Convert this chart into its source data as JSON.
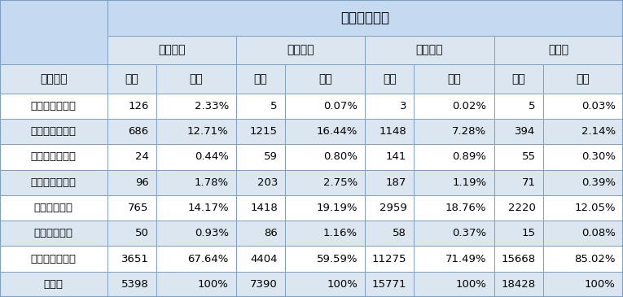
{
  "title": "文章危機程度",
  "col_groups": [
    "高度危機",
    "中度危機",
    "低度危機",
    "無危機"
  ],
  "sub_headers": [
    "句數",
    "比例"
  ],
  "row_header": "語意標註",
  "rows": [
    {
      "label": "自殺或自傷行為",
      "values": [
        "126",
        "2.33%",
        "5",
        "0.07%",
        "3",
        "0.02%",
        "5",
        "0.03%"
      ]
    },
    {
      "label": "憂鬱與自殺意念",
      "values": [
        "686",
        "12.71%",
        "1215",
        "16.44%",
        "1148",
        "7.28%",
        "394",
        "2.14%"
      ]
    },
    {
      "label": "無助感或無望感",
      "values": [
        "24",
        "0.44%",
        "59",
        "0.80%",
        "141",
        "0.89%",
        "55",
        "0.30%"
      ]
    },
    {
      "label": "生理或醫療狀況",
      "values": [
        "96",
        "1.78%",
        "203",
        "2.75%",
        "187",
        "1.19%",
        "71",
        "0.39%"
      ]
    },
    {
      "label": "其他負向文字",
      "values": [
        "765",
        "14.17%",
        "1418",
        "19.19%",
        "2959",
        "18.76%",
        "2220",
        "12.05%"
      ]
    },
    {
      "label": "正向積極文字",
      "values": [
        "50",
        "0.93%",
        "86",
        "1.16%",
        "58",
        "0.37%",
        "15",
        "0.08%"
      ]
    },
    {
      "label": "中性或其他文字",
      "values": [
        "3651",
        "67.64%",
        "4404",
        "59.59%",
        "11275",
        "71.49%",
        "15668",
        "85.02%"
      ]
    }
  ],
  "total_row": {
    "label": "總句數",
    "values": [
      "5398",
      "100%",
      "7390",
      "100%",
      "15771",
      "100%",
      "18428",
      "100%"
    ]
  },
  "header_bg": "#c5d9f1",
  "subheader_bg": "#dce6f1",
  "row_bg_odd": "#ffffff",
  "row_bg_even": "#dce6f1",
  "total_bg": "#dce6f1",
  "border_color": "#7f9fbf",
  "text_color": "#000000",
  "title_fontsize": 12,
  "header_fontsize": 10,
  "cell_fontsize": 9.5
}
